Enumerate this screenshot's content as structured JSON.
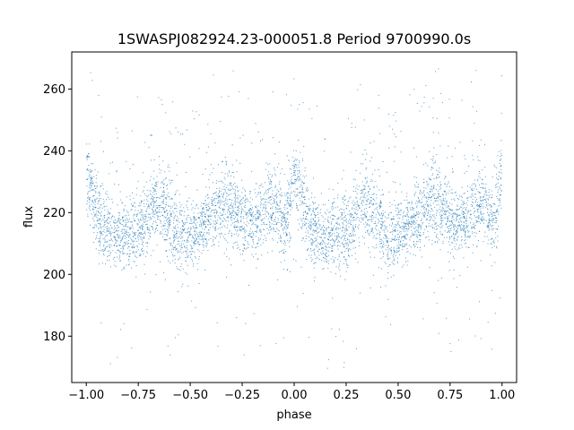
{
  "chart_data": {
    "type": "scatter",
    "title": "1SWASPJ082924.23-000051.8 Period 9700990.0s",
    "xlabel": "phase",
    "ylabel": "flux",
    "xlim": [
      -1.07,
      1.07
    ],
    "ylim": [
      165,
      272
    ],
    "xticks": [
      -1.0,
      -0.75,
      -0.5,
      -0.25,
      0.0,
      0.25,
      0.5,
      0.75,
      1.0
    ],
    "xtick_labels": [
      "−1.00",
      "−0.75",
      "−0.50",
      "−0.25",
      "0.00",
      "0.25",
      "0.50",
      "0.75",
      "1.00"
    ],
    "yticks": [
      180,
      200,
      220,
      240,
      260
    ],
    "ytick_labels": [
      "180",
      "200",
      "220",
      "240",
      "260"
    ],
    "grid": false,
    "marker_color": "#1f77b4",
    "series": [
      {
        "profile_phase": [
          0.0,
          0.02,
          0.05,
          0.08,
          0.12,
          0.16,
          0.2,
          0.25,
          0.3,
          0.33,
          0.37,
          0.4,
          0.44,
          0.48,
          0.52,
          0.56,
          0.6,
          0.64,
          0.68,
          0.72,
          0.76,
          0.8,
          0.84,
          0.88,
          0.92,
          0.96,
          0.98,
          1.0
        ],
        "profile_flux": [
          233,
          228,
          221,
          215,
          213,
          212,
          214,
          213,
          218,
          224,
          221,
          218,
          213,
          212,
          214,
          216,
          220,
          222,
          224,
          221,
          217,
          216,
          219,
          223,
          222,
          215,
          225,
          233
        ],
        "profile_spread": [
          6,
          6,
          7,
          6,
          5,
          5,
          6,
          6,
          6,
          6,
          6,
          6,
          7,
          6,
          5,
          5,
          6,
          6,
          7,
          6,
          5,
          5,
          6,
          6,
          6,
          7,
          7,
          6
        ]
      }
    ]
  }
}
